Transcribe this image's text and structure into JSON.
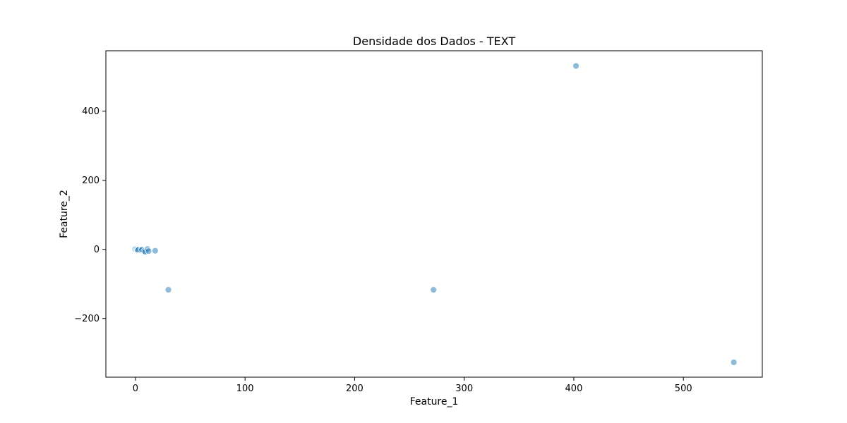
{
  "chart_data": {
    "type": "scatter",
    "title": "Densidade dos Dados - TEXT",
    "xlabel": "Feature_1",
    "ylabel": "Feature_2",
    "xlim": [
      -27,
      572
    ],
    "ylim": [
      -370,
      575
    ],
    "xticks": [
      0,
      100,
      200,
      300,
      400,
      500
    ],
    "yticks": [
      -200,
      0,
      200,
      400
    ],
    "grid": false,
    "point_color": "#1f77b4",
    "edge_color": "#ffffff",
    "alpha": 0.5,
    "points": [
      {
        "x": 0,
        "y": 0
      },
      {
        "x": 0,
        "y": 0
      },
      {
        "x": 0,
        "y": 0
      },
      {
        "x": 0,
        "y": 0
      },
      {
        "x": 0,
        "y": 0
      },
      {
        "x": 0,
        "y": 0
      },
      {
        "x": 0,
        "y": 0
      },
      {
        "x": 0,
        "y": 0
      },
      {
        "x": 0.5,
        "y": -1
      },
      {
        "x": 0.3,
        "y": 0.5
      },
      {
        "x": -0.2,
        "y": 0.2
      },
      {
        "x": 1,
        "y": -1
      },
      {
        "x": 1.5,
        "y": 0
      },
      {
        "x": 2,
        "y": -2
      },
      {
        "x": 3,
        "y": -1
      },
      {
        "x": 5,
        "y": -2
      },
      {
        "x": 6,
        "y": -1
      },
      {
        "x": 8,
        "y": -5
      },
      {
        "x": 9,
        "y": -7
      },
      {
        "x": 11,
        "y": 1
      },
      {
        "x": 12,
        "y": -5
      },
      {
        "x": 18,
        "y": -4
      },
      {
        "x": 30,
        "y": -117
      },
      {
        "x": 272,
        "y": -117
      },
      {
        "x": 402,
        "y": 531
      },
      {
        "x": 546,
        "y": -327
      }
    ]
  }
}
